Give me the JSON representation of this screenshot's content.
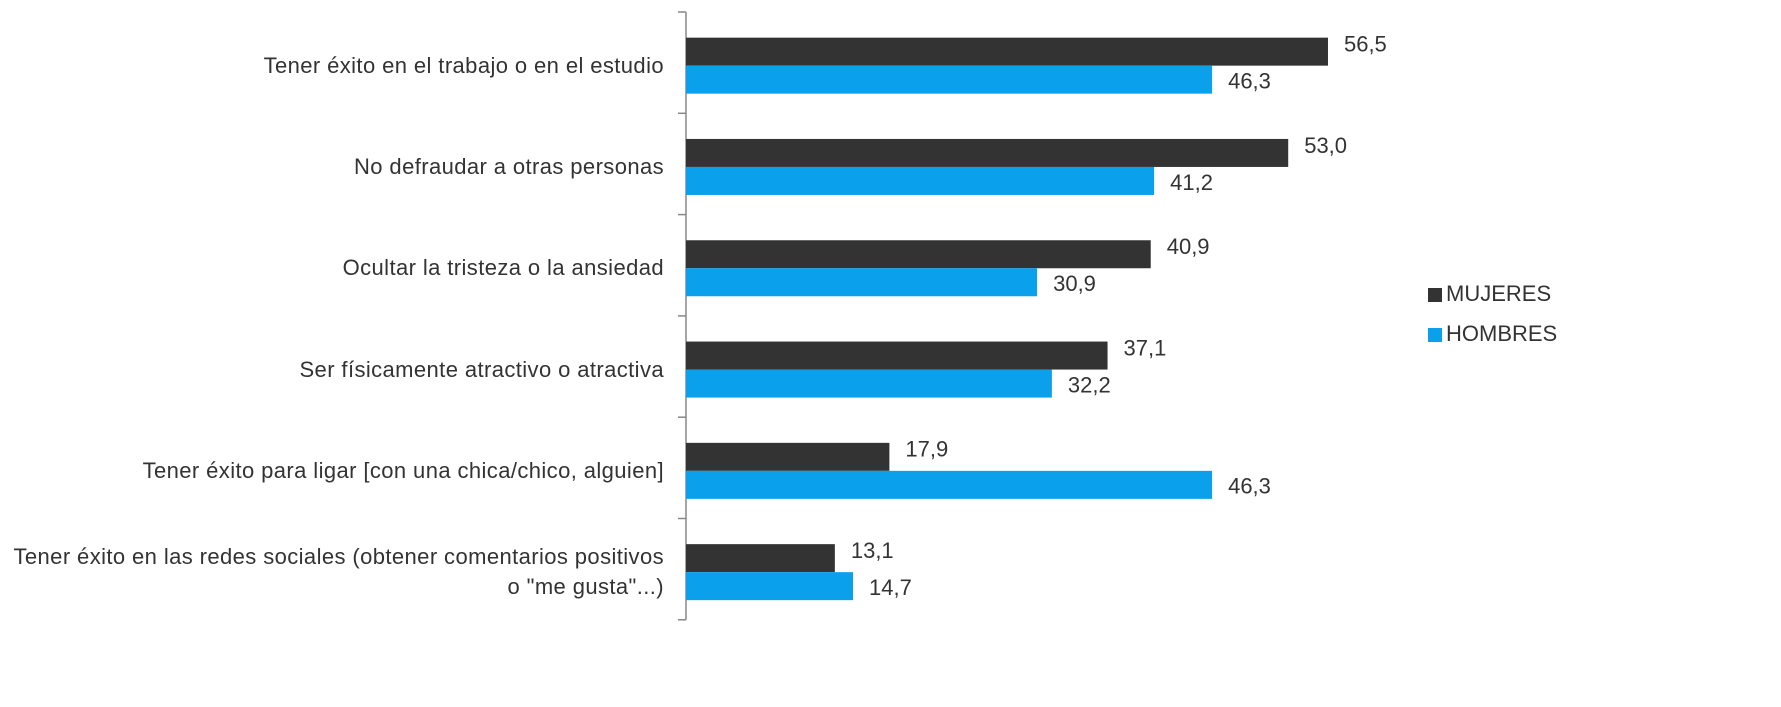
{
  "chart_data": {
    "type": "barh",
    "categories": [
      "Tener éxito en el trabajo o en el estudio",
      "No defraudar a otras personas",
      "Ocultar la tristeza o la ansiedad",
      "Ser físicamente atractivo o atractiva",
      "Tener éxito para ligar [con una chica/chico, alguien]",
      "Tener éxito en las redes sociales (obtener comentarios positivos o \"me gusta\"...)"
    ],
    "series": [
      {
        "name": "MUJERES",
        "color": "#333333",
        "values": [
          56.5,
          53.0,
          40.9,
          37.1,
          17.9,
          13.1
        ],
        "value_labels": [
          "56,5",
          "53,0",
          "40,9",
          "37,1",
          "17,9",
          "13,1"
        ]
      },
      {
        "name": "HOMBRES",
        "color": "#0aa0ec",
        "values": [
          46.3,
          41.2,
          30.9,
          32.2,
          46.3,
          14.7
        ],
        "value_labels": [
          "46,3",
          "41,2",
          "30,9",
          "32,2",
          "46,3",
          "14,7"
        ]
      }
    ],
    "xlim": [
      0,
      80
    ],
    "legend": "right"
  }
}
